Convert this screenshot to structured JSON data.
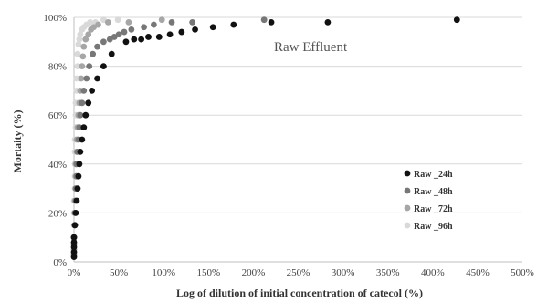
{
  "chart_data": {
    "type": "scatter",
    "annotation": "Raw Effluent",
    "xlabel": "Log of dilution of initial concentration of catecol  (%)",
    "ylabel": "Mortaity (%)",
    "xlim": [
      0,
      500
    ],
    "ylim": [
      0,
      100
    ],
    "x_ticks": [
      "0%",
      "50%",
      "100%",
      "150%",
      "200%",
      "250%",
      "300%",
      "350%",
      "400%",
      "450%",
      "500%"
    ],
    "y_ticks": [
      "0%",
      "20%",
      "40%",
      "60%",
      "80%",
      "100%"
    ],
    "grid": "horizontal",
    "legend_position": "right",
    "series": [
      {
        "name": "Raw _24h",
        "color": "#111111",
        "points": [
          [
            0,
            2
          ],
          [
            0,
            4
          ],
          [
            0,
            6
          ],
          [
            0,
            8
          ],
          [
            0,
            10
          ],
          [
            1,
            15
          ],
          [
            2,
            20
          ],
          [
            3,
            25
          ],
          [
            4,
            30
          ],
          [
            5,
            35
          ],
          [
            6,
            40
          ],
          [
            7,
            45
          ],
          [
            9,
            50
          ],
          [
            11,
            55
          ],
          [
            13,
            60
          ],
          [
            16,
            65
          ],
          [
            20,
            70
          ],
          [
            26,
            75
          ],
          [
            33,
            80
          ],
          [
            42,
            85
          ],
          [
            58,
            90
          ],
          [
            67,
            91
          ],
          [
            75,
            91
          ],
          [
            83,
            92
          ],
          [
            95,
            92
          ],
          [
            107,
            93
          ],
          [
            120,
            94
          ],
          [
            135,
            95
          ],
          [
            155,
            96
          ],
          [
            178,
            97
          ],
          [
            220,
            98
          ],
          [
            283,
            98
          ],
          [
            427,
            99
          ]
        ]
      },
      {
        "name": "Raw _48h",
        "color": "#777777",
        "points": [
          [
            0,
            3
          ],
          [
            0,
            7
          ],
          [
            0,
            10
          ],
          [
            1,
            15
          ],
          [
            1,
            20
          ],
          [
            2,
            25
          ],
          [
            2,
            30
          ],
          [
            3,
            35
          ],
          [
            3,
            40
          ],
          [
            4,
            45
          ],
          [
            5,
            50
          ],
          [
            6,
            55
          ],
          [
            7,
            60
          ],
          [
            9,
            65
          ],
          [
            11,
            70
          ],
          [
            14,
            75
          ],
          [
            17,
            80
          ],
          [
            21,
            85
          ],
          [
            26,
            88
          ],
          [
            33,
            90
          ],
          [
            40,
            91
          ],
          [
            45,
            92
          ],
          [
            50,
            93
          ],
          [
            56,
            94
          ],
          [
            64,
            95
          ],
          [
            78,
            96
          ],
          [
            89,
            97
          ],
          [
            109,
            98
          ],
          [
            132,
            98
          ],
          [
            212,
            99
          ]
        ]
      },
      {
        "name": "Raw _72h",
        "color": "#a6a6a6",
        "points": [
          [
            0,
            5
          ],
          [
            0,
            10
          ],
          [
            1,
            15
          ],
          [
            1,
            20
          ],
          [
            1,
            25
          ],
          [
            2,
            30
          ],
          [
            2,
            35
          ],
          [
            2,
            40
          ],
          [
            3,
            45
          ],
          [
            3,
            50
          ],
          [
            4,
            55
          ],
          [
            5,
            60
          ],
          [
            6,
            65
          ],
          [
            7,
            70
          ],
          [
            8,
            75
          ],
          [
            9,
            80
          ],
          [
            10,
            84
          ],
          [
            11,
            88
          ],
          [
            13,
            91
          ],
          [
            16,
            93
          ],
          [
            19,
            95
          ],
          [
            22,
            96
          ],
          [
            27,
            97
          ],
          [
            38,
            98
          ],
          [
            61,
            98
          ],
          [
            98,
            99
          ]
        ]
      },
      {
        "name": "Raw _96h",
        "color": "#d9d9d9",
        "points": [
          [
            0,
            10
          ],
          [
            0,
            15
          ],
          [
            0,
            20
          ],
          [
            0,
            25
          ],
          [
            1,
            30
          ],
          [
            1,
            35
          ],
          [
            1,
            40
          ],
          [
            1,
            45
          ],
          [
            1,
            50
          ],
          [
            2,
            55
          ],
          [
            2,
            60
          ],
          [
            2,
            65
          ],
          [
            3,
            70
          ],
          [
            3,
            75
          ],
          [
            4,
            80
          ],
          [
            4,
            85
          ],
          [
            5,
            89
          ],
          [
            6,
            91
          ],
          [
            7,
            93
          ],
          [
            9,
            95
          ],
          [
            11,
            96
          ],
          [
            14,
            97
          ],
          [
            18,
            98
          ],
          [
            24,
            98
          ],
          [
            33,
            99
          ],
          [
            49,
            99
          ]
        ]
      }
    ]
  }
}
